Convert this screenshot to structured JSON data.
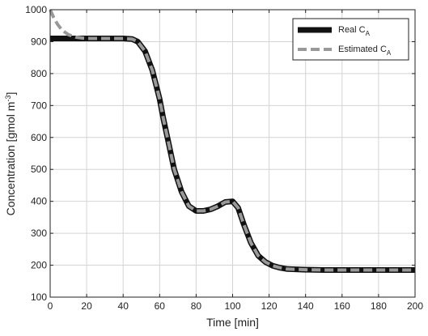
{
  "chart_data": {
    "type": "line",
    "xlabel": "Time [min]",
    "ylabel": "Concentration [gmol m",
    "ylabel_sup": "-3",
    "ylabel_end": "]",
    "xlim": [
      0,
      200
    ],
    "ylim": [
      100,
      1000
    ],
    "xticks": [
      0,
      20,
      40,
      60,
      80,
      100,
      120,
      140,
      160,
      180,
      200
    ],
    "yticks": [
      100,
      200,
      300,
      400,
      500,
      600,
      700,
      800,
      900,
      1000
    ],
    "grid": true,
    "legend_position": "top-right",
    "series": [
      {
        "name": "Real C",
        "name_sub": "A",
        "color": "#111111",
        "style": "solid",
        "x": [
          0,
          10,
          20,
          30,
          40,
          45,
          48,
          52,
          56,
          60,
          62,
          65,
          68,
          72,
          76,
          80,
          84,
          88,
          92,
          96,
          100,
          103,
          106,
          110,
          114,
          118,
          122,
          126,
          130,
          140,
          150,
          160,
          170,
          180,
          190,
          200
        ],
        "y": [
          910,
          910,
          910,
          910,
          910,
          908,
          900,
          870,
          810,
          720,
          660,
          580,
          500,
          430,
          385,
          370,
          370,
          375,
          385,
          398,
          400,
          380,
          330,
          270,
          230,
          210,
          198,
          192,
          188,
          186,
          185,
          185,
          185,
          185,
          185,
          185
        ]
      },
      {
        "name": "Estimated C",
        "name_sub": "A",
        "color": "#999999",
        "style": "dashed",
        "x": [
          0,
          2,
          4,
          6,
          8,
          10,
          14,
          18,
          22,
          30,
          40,
          45,
          48,
          52,
          56,
          60,
          62,
          65,
          68,
          72,
          76,
          80,
          84,
          88,
          92,
          96,
          100,
          103,
          106,
          110,
          114,
          118,
          122,
          126,
          130,
          140,
          150,
          160,
          170,
          180,
          190,
          200
        ],
        "y": [
          1000,
          975,
          955,
          940,
          930,
          922,
          914,
          911,
          910,
          910,
          910,
          908,
          900,
          870,
          810,
          720,
          660,
          580,
          500,
          430,
          385,
          370,
          370,
          375,
          385,
          398,
          400,
          380,
          330,
          270,
          230,
          210,
          198,
          192,
          188,
          186,
          185,
          185,
          185,
          185,
          185,
          185
        ]
      }
    ]
  }
}
